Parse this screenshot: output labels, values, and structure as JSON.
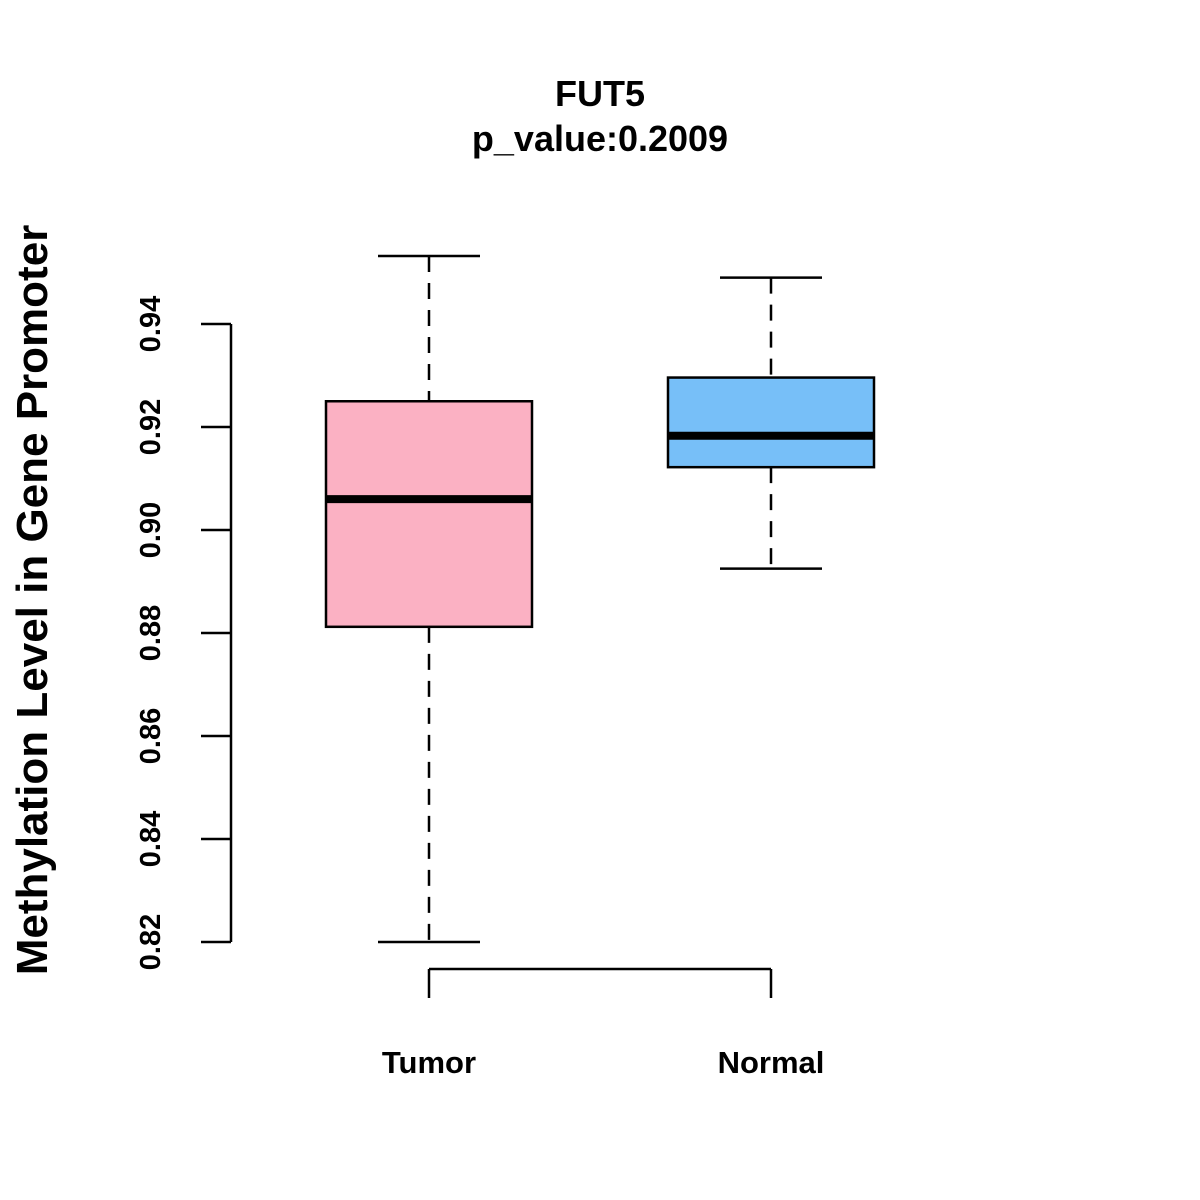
{
  "chart_data": {
    "type": "boxplot",
    "title": "FUT5",
    "subtitle": "p_value:0.2009",
    "xlabel": "",
    "ylabel": "Methylation Level in Gene Promoter",
    "ylim": [
      0.82,
      0.94
    ],
    "yticks": [
      "0.82",
      "0.84",
      "0.86",
      "0.88",
      "0.90",
      "0.92",
      "0.94"
    ],
    "categories": [
      "Tumor",
      "Normal"
    ],
    "series": [
      {
        "name": "Tumor",
        "color": "#FBB1C3",
        "whisker_low": 0.82,
        "q1": 0.8812,
        "median": 0.906,
        "q3": 0.925,
        "whisker_high": 0.9532
      },
      {
        "name": "Normal",
        "color": "#77BFF8",
        "whisker_low": 0.8925,
        "q1": 0.9122,
        "median": 0.9183,
        "q3": 0.9296,
        "whisker_high": 0.949
      }
    ]
  }
}
